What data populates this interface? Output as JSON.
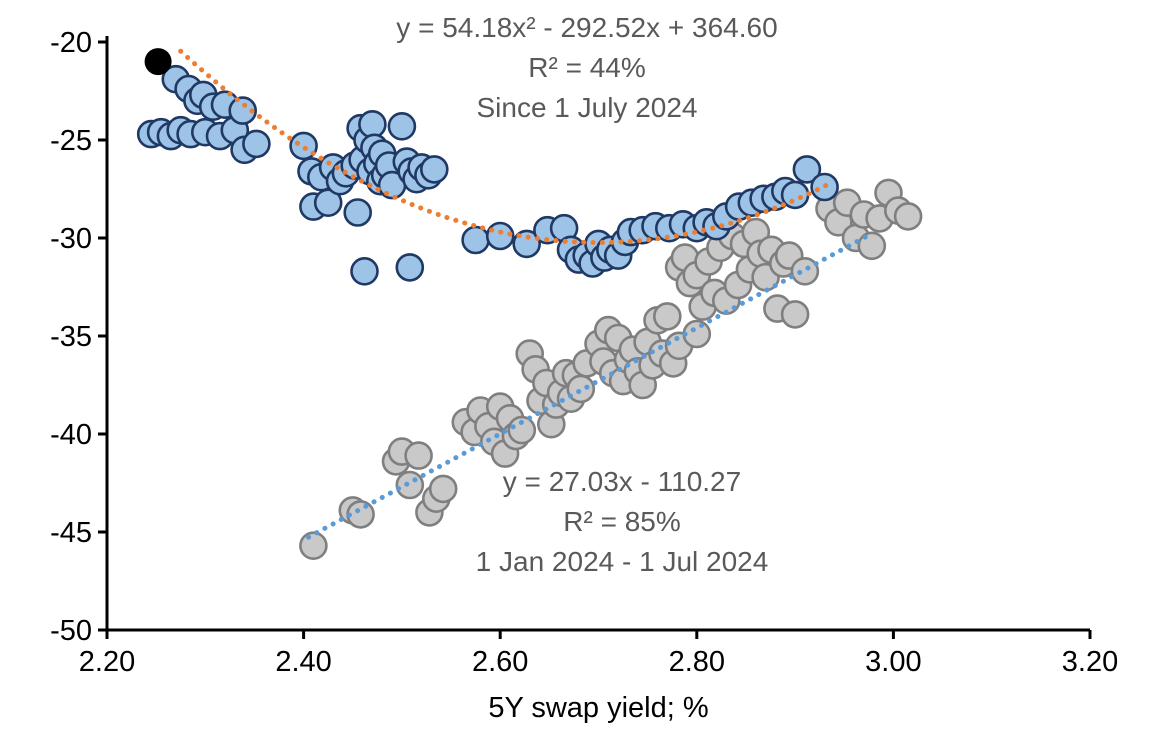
{
  "chart_data": {
    "type": "scatter",
    "title": "",
    "xlabel": "5Y swap yield; %",
    "ylabel": "",
    "xlim": [
      2.2,
      3.2
    ],
    "ylim": [
      -50,
      -20
    ],
    "grid": false,
    "legend_position": "none",
    "x_ticks": [
      {
        "v": 2.2,
        "label": "2.20"
      },
      {
        "v": 2.4,
        "label": "2.40"
      },
      {
        "v": 2.6,
        "label": "2.60"
      },
      {
        "v": 2.8,
        "label": "2.80"
      },
      {
        "v": 3.0,
        "label": "3.00"
      },
      {
        "v": 3.2,
        "label": "3.20"
      }
    ],
    "y_ticks": [
      {
        "v": -20,
        "label": "-20"
      },
      {
        "v": -25,
        "label": "-25"
      },
      {
        "v": -30,
        "label": "-30"
      },
      {
        "v": -35,
        "label": "-35"
      },
      {
        "v": -40,
        "label": "-40"
      },
      {
        "v": -45,
        "label": "-45"
      },
      {
        "v": -50,
        "label": "-50"
      }
    ],
    "annotations": {
      "upper": {
        "equation": "y = 54.18x² - 292.52x + 364.60",
        "r2": "R² = 44%",
        "period": "Since 1 July 2024"
      },
      "lower": {
        "equation": "y = 27.03x - 110.27",
        "r2": "R² = 85%",
        "period": "1 Jan 2024 - 1 Jul 2024"
      }
    },
    "series": [
      {
        "name": "1 Jan 2024 - 1 Jul 2024",
        "marker_fill": "#C9C9C9",
        "marker_stroke": "#7F7F7F",
        "trend": {
          "type": "linear",
          "m": 27.03,
          "b": -110.27,
          "color": "#5B9BD5",
          "x_range": [
            2.405,
            2.975
          ]
        },
        "points": [
          [
            2.41,
            -45.7
          ],
          [
            2.45,
            -43.9
          ],
          [
            2.458,
            -44.1
          ],
          [
            2.494,
            -41.4
          ],
          [
            2.5,
            -40.9
          ],
          [
            2.508,
            -42.6
          ],
          [
            2.517,
            -41.1
          ],
          [
            2.528,
            -44.0
          ],
          [
            2.535,
            -43.3
          ],
          [
            2.542,
            -42.8
          ],
          [
            2.565,
            -39.4
          ],
          [
            2.574,
            -39.9
          ],
          [
            2.58,
            -38.8
          ],
          [
            2.588,
            -39.6
          ],
          [
            2.594,
            -40.4
          ],
          [
            2.6,
            -38.6
          ],
          [
            2.605,
            -41.0
          ],
          [
            2.61,
            -39.2
          ],
          [
            2.616,
            -40.1
          ],
          [
            2.622,
            -39.8
          ],
          [
            2.63,
            -35.9
          ],
          [
            2.636,
            -36.7
          ],
          [
            2.641,
            -38.3
          ],
          [
            2.647,
            -37.4
          ],
          [
            2.652,
            -39.5
          ],
          [
            2.657,
            -38.5
          ],
          [
            2.662,
            -37.9
          ],
          [
            2.667,
            -36.9
          ],
          [
            2.672,
            -38.2
          ],
          [
            2.677,
            -37.0
          ],
          [
            2.682,
            -37.7
          ],
          [
            2.688,
            -36.4
          ],
          [
            2.7,
            -35.4
          ],
          [
            2.705,
            -36.3
          ],
          [
            2.71,
            -34.7
          ],
          [
            2.715,
            -36.9
          ],
          [
            2.72,
            -35.1
          ],
          [
            2.725,
            -37.3
          ],
          [
            2.73,
            -36.2
          ],
          [
            2.735,
            -35.7
          ],
          [
            2.74,
            -36.8
          ],
          [
            2.745,
            -37.5
          ],
          [
            2.75,
            -35.3
          ],
          [
            2.755,
            -36.5
          ],
          [
            2.76,
            -34.2
          ],
          [
            2.765,
            -35.9
          ],
          [
            2.77,
            -34.0
          ],
          [
            2.776,
            -36.4
          ],
          [
            2.782,
            -35.5
          ],
          [
            2.782,
            -31.5
          ],
          [
            2.788,
            -31.0
          ],
          [
            2.793,
            -32.3
          ],
          [
            2.8,
            -34.9
          ],
          [
            2.8,
            -31.9
          ],
          [
            2.806,
            -33.5
          ],
          [
            2.812,
            -31.2
          ],
          [
            2.818,
            -32.8
          ],
          [
            2.824,
            -30.5
          ],
          [
            2.83,
            -33.2
          ],
          [
            2.836,
            -29.9
          ],
          [
            2.842,
            -32.4
          ],
          [
            2.848,
            -30.3
          ],
          [
            2.854,
            -31.6
          ],
          [
            2.86,
            -29.7
          ],
          [
            2.865,
            -30.8
          ],
          [
            2.87,
            -32.0
          ],
          [
            2.876,
            -30.6
          ],
          [
            2.882,
            -33.6
          ],
          [
            2.888,
            -31.3
          ],
          [
            2.894,
            -30.9
          ],
          [
            2.9,
            -33.9
          ],
          [
            2.91,
            -31.7
          ],
          [
            2.935,
            -28.5
          ],
          [
            2.944,
            -29.2
          ],
          [
            2.953,
            -28.2
          ],
          [
            2.962,
            -30.0
          ],
          [
            2.97,
            -28.8
          ],
          [
            2.978,
            -30.4
          ],
          [
            2.986,
            -29.0
          ],
          [
            2.995,
            -27.7
          ],
          [
            3.005,
            -28.6
          ],
          [
            3.015,
            -28.9
          ]
        ]
      },
      {
        "name": "Since 1 July 2024",
        "marker_fill": "#9DC3E6",
        "marker_stroke": "#203864",
        "trend": {
          "type": "quadratic",
          "a": 54.18,
          "b": -292.52,
          "c": 364.6,
          "color": "#ED7D31",
          "x_range": [
            2.275,
            2.935
          ]
        },
        "points": [
          [
            2.245,
            -24.7
          ],
          [
            2.255,
            -24.6
          ],
          [
            2.265,
            -24.8
          ],
          [
            2.27,
            -21.9
          ],
          [
            2.275,
            -24.5
          ],
          [
            2.283,
            -22.4
          ],
          [
            2.285,
            -24.7
          ],
          [
            2.292,
            -23.0
          ],
          [
            2.298,
            -22.7
          ],
          [
            2.3,
            -24.6
          ],
          [
            2.308,
            -23.3
          ],
          [
            2.315,
            -24.8
          ],
          [
            2.32,
            -23.2
          ],
          [
            2.33,
            -24.5
          ],
          [
            2.338,
            -23.5
          ],
          [
            2.34,
            -25.5
          ],
          [
            2.352,
            -25.2
          ],
          [
            2.4,
            -25.3
          ],
          [
            2.408,
            -26.6
          ],
          [
            2.41,
            -28.4
          ],
          [
            2.418,
            -26.9
          ],
          [
            2.425,
            -28.2
          ],
          [
            2.43,
            -26.4
          ],
          [
            2.437,
            -27.1
          ],
          [
            2.443,
            -26.7
          ],
          [
            2.452,
            -26.3
          ],
          [
            2.455,
            -28.7
          ],
          [
            2.458,
            -24.4
          ],
          [
            2.46,
            -26.0
          ],
          [
            2.462,
            -31.7
          ],
          [
            2.465,
            -25.0
          ],
          [
            2.468,
            -26.6
          ],
          [
            2.47,
            -24.2
          ],
          [
            2.472,
            -25.4
          ],
          [
            2.475,
            -26.2
          ],
          [
            2.478,
            -27.1
          ],
          [
            2.48,
            -25.7
          ],
          [
            2.483,
            -26.8
          ],
          [
            2.487,
            -26.3
          ],
          [
            2.49,
            -27.3
          ],
          [
            2.5,
            -24.3
          ],
          [
            2.505,
            -26.1
          ],
          [
            2.508,
            -31.5
          ],
          [
            2.51,
            -26.6
          ],
          [
            2.515,
            -27.0
          ],
          [
            2.52,
            -26.4
          ],
          [
            2.527,
            -26.8
          ],
          [
            2.533,
            -26.5
          ],
          [
            2.575,
            -30.1
          ],
          [
            2.6,
            -29.9
          ],
          [
            2.627,
            -30.3
          ],
          [
            2.648,
            -29.6
          ],
          [
            2.665,
            -29.5
          ],
          [
            2.672,
            -30.6
          ],
          [
            2.68,
            -31.1
          ],
          [
            2.688,
            -30.9
          ],
          [
            2.694,
            -31.3
          ],
          [
            2.7,
            -30.3
          ],
          [
            2.706,
            -31.0
          ],
          [
            2.712,
            -30.6
          ],
          [
            2.72,
            -30.9
          ],
          [
            2.727,
            -30.2
          ],
          [
            2.733,
            -29.7
          ],
          [
            2.745,
            -29.6
          ],
          [
            2.758,
            -29.4
          ],
          [
            2.772,
            -29.5
          ],
          [
            2.786,
            -29.3
          ],
          [
            2.8,
            -29.5
          ],
          [
            2.81,
            -29.2
          ],
          [
            2.82,
            -29.4
          ],
          [
            2.83,
            -28.9
          ],
          [
            2.843,
            -28.4
          ],
          [
            2.856,
            -28.2
          ],
          [
            2.868,
            -28.0
          ],
          [
            2.88,
            -27.9
          ],
          [
            2.89,
            -27.6
          ],
          [
            2.9,
            -27.8
          ],
          [
            2.912,
            -26.5
          ],
          [
            2.93,
            -27.4
          ]
        ]
      }
    ],
    "highlight_point": {
      "x": 2.252,
      "y": -21.0,
      "color": "#000000"
    }
  }
}
